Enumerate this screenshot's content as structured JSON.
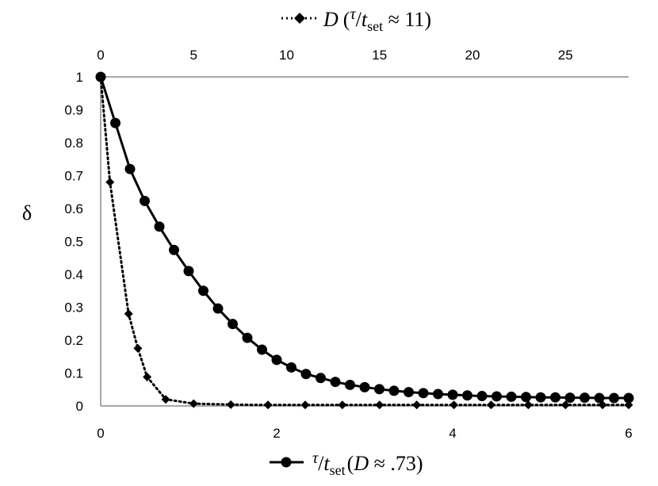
{
  "chart_data": {
    "type": "line",
    "ylabel": "δ",
    "ylim": [
      0,
      1
    ],
    "y_ticks": [
      "0",
      "0.1",
      "0.2",
      "0.3",
      "0.4",
      "0.5",
      "0.6",
      "0.7",
      "0.8",
      "0.9",
      "1"
    ],
    "grid": false,
    "x_primary": {
      "position": "bottom",
      "range": [
        0,
        6
      ],
      "ticks": [
        "0",
        "2",
        "4",
        "6"
      ],
      "label": {
        "num": "τ",
        "den": "t",
        "den_sub": "set",
        "paren_var": "D",
        "paren_rest": " ≈ .73)"
      }
    },
    "x_secondary": {
      "position": "top",
      "range": [
        0,
        28.4
      ],
      "ticks": [
        "0",
        "5",
        "10",
        "15",
        "20",
        "25"
      ],
      "label": {
        "var": "D",
        "num": "τ",
        "den": "t",
        "den_sub": "set",
        "rest": " ≈ 11)"
      }
    },
    "legend_placement": "beside each axis label",
    "series": [
      {
        "axis": "bottom",
        "line_style": "solid",
        "marker": "circle",
        "color": "#000000",
        "x": [
          0,
          0.1667,
          0.3333,
          0.5,
          0.6667,
          0.8333,
          1.0,
          1.1667,
          1.3333,
          1.5,
          1.6667,
          1.8333,
          2.0,
          2.1667,
          2.3333,
          2.5,
          2.6667,
          2.8333,
          3.0,
          3.1667,
          3.3333,
          3.5,
          3.6667,
          3.8333,
          4.0,
          4.1667,
          4.3333,
          4.5,
          4.6667,
          4.8333,
          5.0,
          5.1667,
          5.3333,
          5.5,
          5.6667,
          5.8333,
          6.0
        ],
        "y": [
          1.0,
          0.86,
          0.72,
          0.623,
          0.545,
          0.474,
          0.41,
          0.35,
          0.296,
          0.249,
          0.207,
          0.171,
          0.14,
          0.117,
          0.097,
          0.085,
          0.073,
          0.064,
          0.057,
          0.051,
          0.046,
          0.042,
          0.039,
          0.036,
          0.034,
          0.032,
          0.03,
          0.029,
          0.028,
          0.027,
          0.026,
          0.026,
          0.025,
          0.025,
          0.024,
          0.024,
          0.024
        ]
      },
      {
        "axis": "top",
        "line_style": "dotted",
        "marker": "diamond",
        "color": "#000000",
        "x": [
          0,
          0.5,
          1.5,
          2.0,
          2.5,
          3.5,
          5.0,
          7.0,
          9.0,
          11.0,
          13.0,
          15.0,
          17.0,
          19.0,
          21.0,
          23.0,
          25.0,
          27.0,
          28.5
        ],
        "y": [
          1.0,
          0.68,
          0.28,
          0.175,
          0.088,
          0.02,
          0.007,
          0.004,
          0.003,
          0.003,
          0.003,
          0.003,
          0.003,
          0.003,
          0.003,
          0.003,
          0.003,
          0.003,
          0.003
        ]
      }
    ]
  }
}
